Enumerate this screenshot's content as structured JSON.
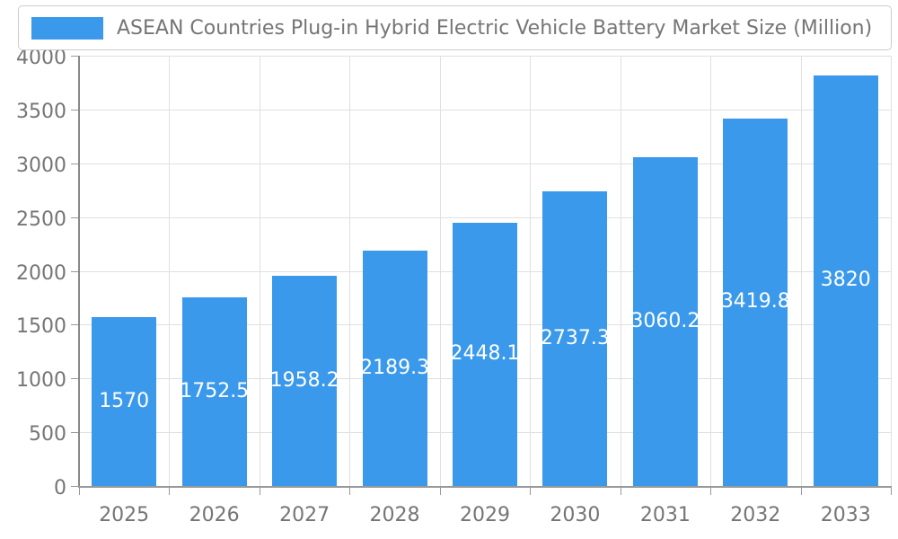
{
  "chart_data": {
    "type": "bar",
    "title": "ASEAN Countries Plug-in Hybrid Electric Vehicle Battery Market Size (Million)",
    "legend_position": "top-left",
    "categories": [
      "2025",
      "2026",
      "2027",
      "2028",
      "2029",
      "2030",
      "2031",
      "2032",
      "2033"
    ],
    "values": [
      1570,
      1752.5,
      1958.2,
      2189.3,
      2448.1,
      2737.3,
      3060.2,
      3419.8,
      3820
    ],
    "data_labels": [
      "1570",
      "1752.5",
      "1958.2",
      "2189.3",
      "2448.1",
      "2737.3",
      "3060.2",
      "3419.8",
      "3820"
    ],
    "xlabel": "",
    "ylabel": "",
    "ylim": [
      0,
      4000
    ],
    "ytick_interval": 500,
    "ytick_labels": [
      "0",
      "500",
      "1000",
      "1500",
      "2000",
      "2500",
      "3000",
      "3500",
      "4000"
    ],
    "grid": true,
    "colors": {
      "bar": "#3B99EC",
      "data_label": "#FFFFFF",
      "axis_line_y": "#888888",
      "axis_line_x": "#999999",
      "tick": "#999999",
      "gridline": "#E0E0E0",
      "text": "#757575",
      "legend_border": "#CCCCCC",
      "background": "#FFFFFF"
    }
  }
}
